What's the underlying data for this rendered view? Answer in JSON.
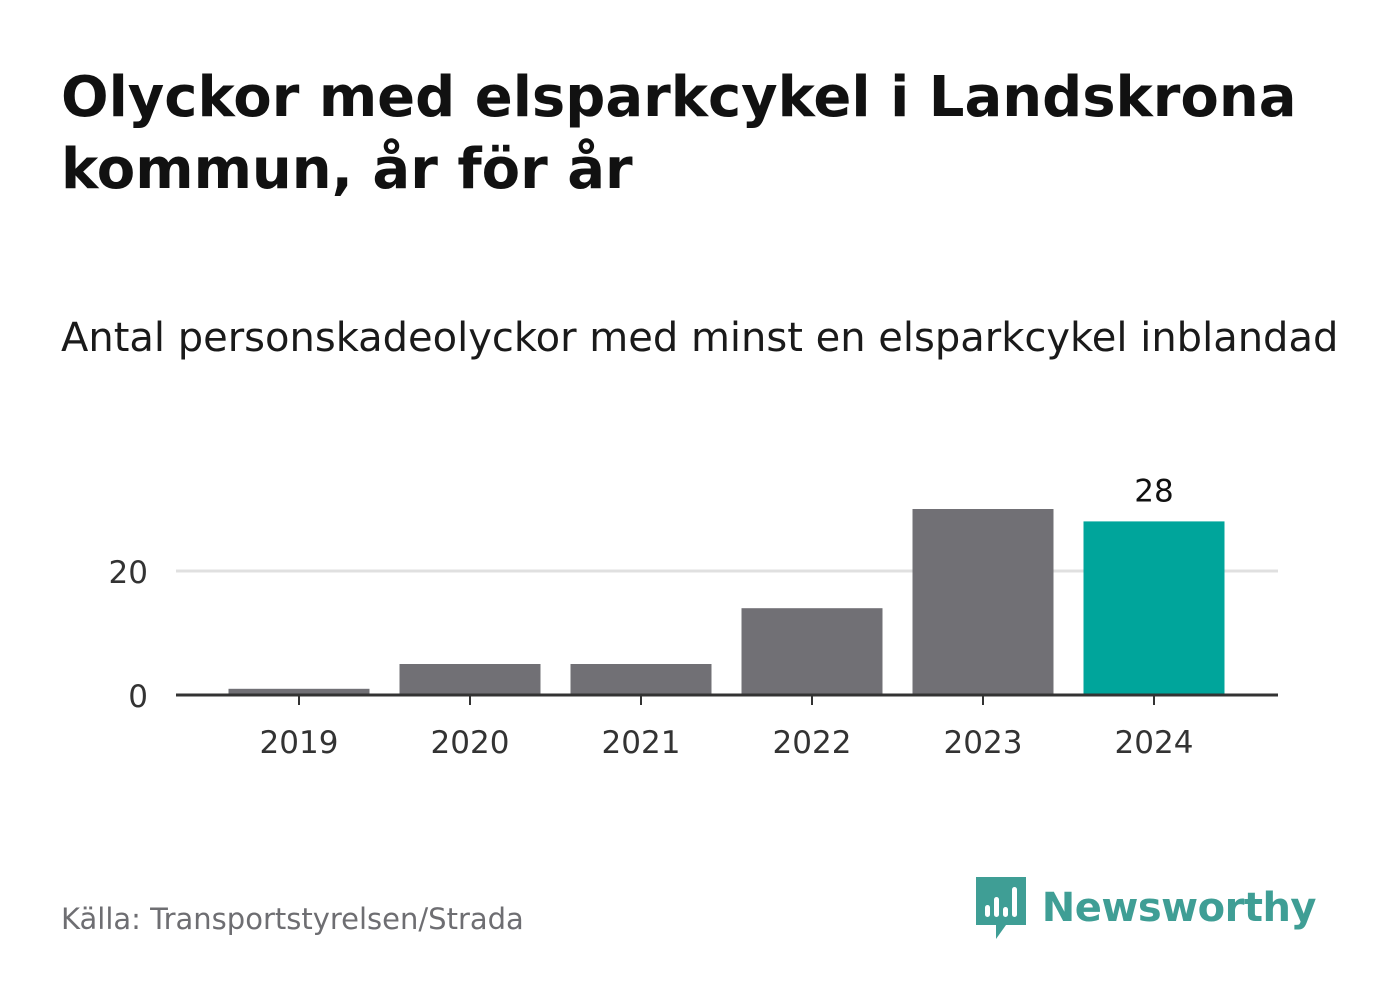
{
  "header": {
    "title": "Olyckor med elsparkcykel i Landskrona kommun, år för år",
    "subtitle": "Antal personskadeolyckor med minst en elsparkcykel inblandad"
  },
  "chart_data": {
    "type": "bar",
    "categories": [
      "2019",
      "2020",
      "2021",
      "2022",
      "2023",
      "2024"
    ],
    "values": [
      1,
      5,
      5,
      14,
      30,
      28
    ],
    "highlight_index": 5,
    "data_labels": [
      null,
      null,
      null,
      null,
      null,
      "28"
    ],
    "y_ticks": [
      0,
      20
    ],
    "ylim": [
      0,
      30
    ],
    "grid": true,
    "colors": {
      "bar": "#717075",
      "highlight": "#00a59b",
      "grid": "#e0e0e0",
      "axis": "#333333",
      "tick_text": "#333333"
    }
  },
  "footer": {
    "source": "Källa: Transportstyrelsen/Strada",
    "brand_name": "Newsworthy",
    "brand_icon": "newsworthy-chart-bubble-icon",
    "brand_color": "#3f9e95"
  }
}
